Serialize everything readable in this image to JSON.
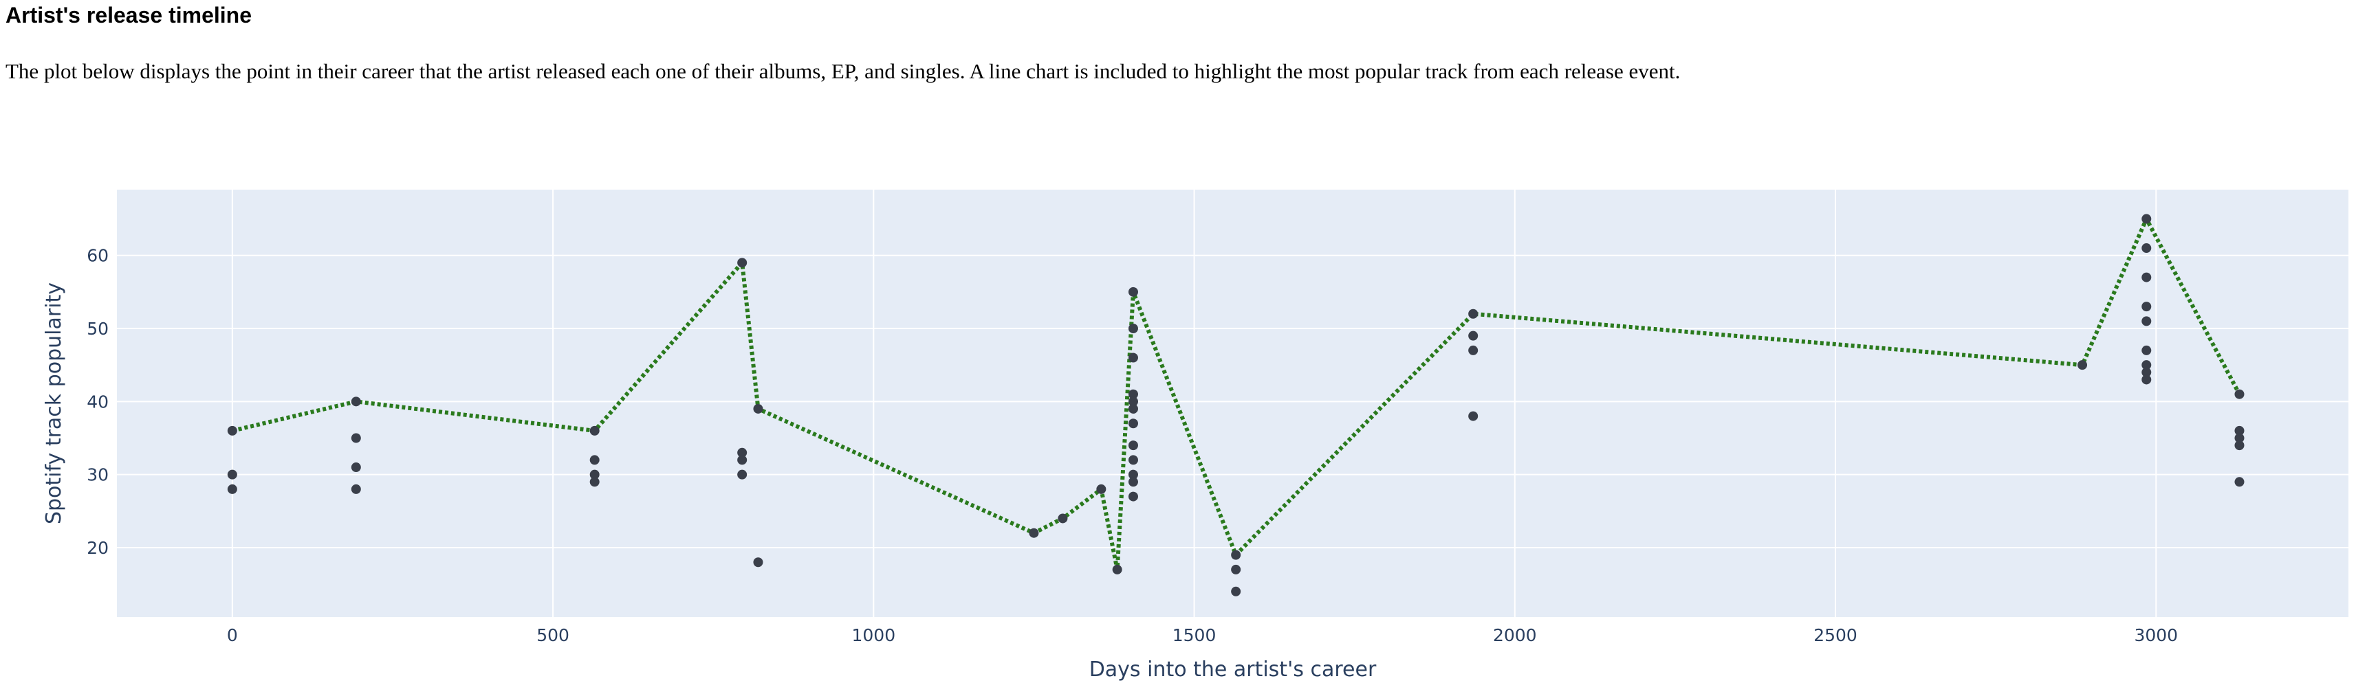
{
  "page": {
    "title": "Artist's release timeline",
    "description": "The plot below displays the point in their career that the artist released each one of their albums, EP, and singles. A line chart is included to highlight the most popular track from each release event."
  },
  "chart_data": {
    "type": "scatter",
    "xlabel": "Days into the artist's career",
    "ylabel": "Spotify track popularity",
    "xlim": [
      -180,
      3300
    ],
    "ylim": [
      10.5,
      69
    ],
    "xticks": [
      0,
      500,
      1000,
      1500,
      2000,
      2500,
      3000
    ],
    "yticks": [
      20,
      30,
      40,
      50,
      60
    ],
    "grid": true,
    "legend": "none",
    "colors": {
      "plot_bg": "#e5ecf6",
      "grid": "#ffffff",
      "marker": "#3a3f4a",
      "line": "#2a7a1d"
    },
    "series": [
      {
        "mode": "markers",
        "points": [
          [
            0,
            36
          ],
          [
            0,
            30
          ],
          [
            0,
            28
          ],
          [
            193,
            40
          ],
          [
            193,
            35
          ],
          [
            193,
            31
          ],
          [
            193,
            28
          ],
          [
            565,
            36
          ],
          [
            565,
            32
          ],
          [
            565,
            30
          ],
          [
            565,
            29
          ],
          [
            795,
            59
          ],
          [
            795,
            33
          ],
          [
            795,
            32
          ],
          [
            795,
            30
          ],
          [
            820,
            39
          ],
          [
            820,
            18
          ],
          [
            1250,
            22
          ],
          [
            1295,
            24
          ],
          [
            1355,
            28
          ],
          [
            1380,
            17
          ],
          [
            1405,
            55
          ],
          [
            1405,
            50
          ],
          [
            1405,
            46
          ],
          [
            1405,
            41
          ],
          [
            1405,
            40
          ],
          [
            1405,
            39
          ],
          [
            1405,
            37
          ],
          [
            1405,
            34
          ],
          [
            1405,
            32
          ],
          [
            1405,
            30
          ],
          [
            1405,
            29
          ],
          [
            1405,
            27
          ],
          [
            1565,
            19
          ],
          [
            1565,
            17
          ],
          [
            1565,
            14
          ],
          [
            1935,
            52
          ],
          [
            1935,
            49
          ],
          [
            1935,
            47
          ],
          [
            1935,
            38
          ],
          [
            2885,
            45
          ],
          [
            2985,
            65
          ],
          [
            2985,
            61
          ],
          [
            2985,
            57
          ],
          [
            2985,
            53
          ],
          [
            2985,
            51
          ],
          [
            2985,
            47
          ],
          [
            2985,
            45
          ],
          [
            2985,
            44
          ],
          [
            2985,
            43
          ],
          [
            3130,
            41
          ],
          [
            3130,
            36
          ],
          [
            3130,
            35
          ],
          [
            3130,
            34
          ],
          [
            3130,
            29
          ]
        ]
      },
      {
        "mode": "lines",
        "points": [
          [
            0,
            36
          ],
          [
            193,
            40
          ],
          [
            565,
            36
          ],
          [
            795,
            59
          ],
          [
            820,
            39
          ],
          [
            1250,
            22
          ],
          [
            1295,
            24
          ],
          [
            1355,
            28
          ],
          [
            1380,
            17
          ],
          [
            1405,
            55
          ],
          [
            1565,
            19
          ],
          [
            1935,
            52
          ],
          [
            2885,
            45
          ],
          [
            2985,
            65
          ],
          [
            3130,
            41
          ]
        ]
      }
    ]
  }
}
